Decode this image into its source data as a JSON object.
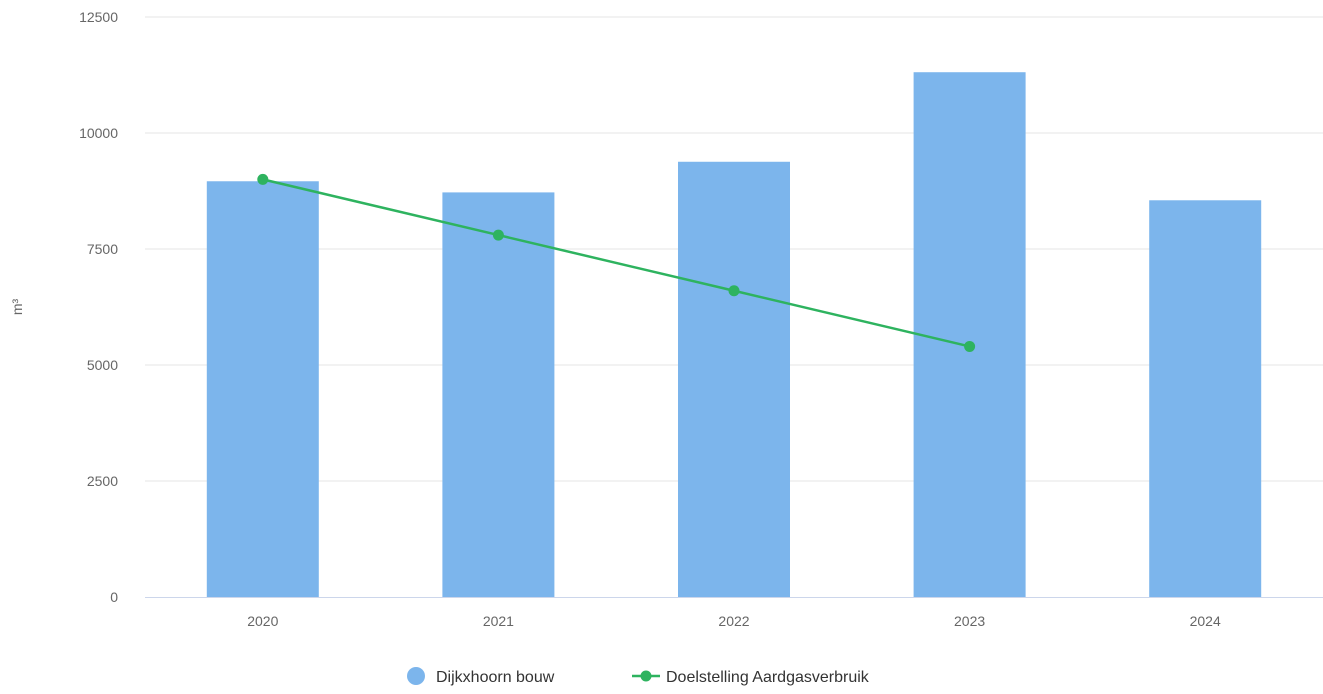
{
  "chart_data": {
    "type": "bar",
    "categories": [
      "2020",
      "2021",
      "2022",
      "2023",
      "2024"
    ],
    "series": [
      {
        "name": "Dijkxhoorn bouw",
        "type": "bar",
        "color": "#7cb5ec",
        "values": [
          8960,
          8720,
          9380,
          11310,
          8550
        ]
      },
      {
        "name": "Doelstelling Aardgasverbruik",
        "type": "line",
        "color": "#2eb35f",
        "values": [
          9000,
          7800,
          6600,
          5400,
          null
        ]
      }
    ],
    "ylabel": "m³",
    "ylim": [
      0,
      12500
    ],
    "yticks": [
      "0",
      "2500",
      "5000",
      "7500",
      "10000",
      "12500"
    ],
    "grid": true,
    "legend_position": "bottom-center"
  }
}
